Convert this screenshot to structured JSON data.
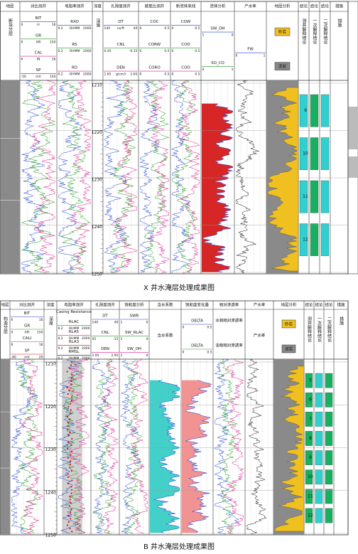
{
  "panels": [
    {
      "caption": "X 井水淹层处理成果图",
      "columns": [
        "地层",
        "对比测井",
        "电阻率测井",
        "深度",
        "孔隙度测井",
        "碳氧比测井",
        "新流体来线",
        "流体分析",
        "产水率",
        "地层分析",
        "结论",
        "结论",
        "结论",
        "措施"
      ],
      "headers": [
        [
          {
            "name": "断块分层"
          }
        ],
        [
          {
            "name": "BIT",
            "left": "0",
            "unit": "H",
            "right": "16"
          },
          {
            "name": "GR",
            "left": "0",
            "unit": "API",
            "right": "150"
          },
          {
            "name": "CAL",
            "left": "6",
            "unit": "IN",
            "right": "16"
          },
          {
            "name": "SP",
            "left": "-50",
            "unit": "mV",
            "right": "150"
          }
        ],
        [
          {
            "name": "RXO",
            "left": "0.2",
            "unit": "OHMM",
            "right": "2000"
          },
          {
            "name": "RS",
            "left": "0.2",
            "unit": "OHMM",
            "right": "2000"
          },
          {
            "name": "RD",
            "left": "0.2",
            "unit": "OHMM",
            "right": "2000"
          }
        ],
        [
          {
            "name": "深度"
          }
        ],
        [
          {
            "name": "DT",
            "left": "140",
            "unit": "us/ft",
            "right": "40"
          },
          {
            "name": "CNL",
            "left": "0.45",
            "unit": "",
            "right": "-0.15"
          },
          {
            "name": "DEN",
            "left": "1.65",
            "unit": "g/cm3",
            "right": "2.65"
          }
        ],
        [
          {
            "name": "COC",
            "left": "0",
            "unit": "",
            "right": "0.5"
          },
          {
            "name": "CORW",
            "left": "0",
            "unit": "",
            "right": "0.5"
          },
          {
            "name": "CORO",
            "left": "0",
            "unit": "",
            "right": "0.5"
          }
        ],
        [
          {
            "name": "COW",
            "left": "0",
            "unit": "",
            "right": "0.5"
          },
          {
            "name": "COD",
            "left": "0",
            "unit": "",
            "right": "0.5"
          },
          {
            "name": "COO",
            "left": "0",
            "unit": "",
            "right": "0.5"
          }
        ],
        [
          {
            "name": "SW_OH",
            "left": "1",
            "unit": "",
            "right": "0"
          },
          {
            "name": "SO_CO",
            "left": "0",
            "unit": "",
            "right": "1"
          }
        ],
        [
          {
            "name": "FW",
            "left": "0",
            "unit": "",
            "right": "1"
          }
        ],
        [
          {
            "name": "砂岩"
          },
          {
            "name": "泥岩"
          }
        ],
        [
          {
            "name": "测井解释结论"
          }
        ],
        [
          {
            "name": "一次解释结论"
          }
        ],
        [
          {
            "name": "二次解释结论"
          }
        ],
        [
          {
            "name": "措施"
          }
        ]
      ],
      "depth_ticks": [
        1210,
        1220,
        1230,
        1240,
        1250
      ],
      "layers": [
        "9",
        "10",
        "11",
        "12"
      ]
    },
    {
      "caption": "B 井水淹层处理成果图",
      "columns": [
        "地层",
        "对比测井",
        "深度",
        "电阻率测井",
        "孔隙度测井",
        "饱和度分析",
        "含水系数",
        "饱和度变化量",
        "相对渗透率",
        "产水率",
        "地层分析",
        "结论",
        "结论",
        "结论",
        "措施"
      ],
      "headers": [
        [
          {
            "name": "构造分层"
          }
        ],
        [
          {
            "name": "BIT",
            "left": "6",
            "unit": "",
            "right": "16"
          },
          {
            "name": "GR",
            "left": "0",
            "unit": "API",
            "right": "150"
          },
          {
            "name": "CALI",
            "left": "6",
            "unit": "",
            "right": "16"
          },
          {
            "name": "SP",
            "left": "-80",
            "unit": "mV",
            "right": "20"
          }
        ],
        [
          {
            "name": "深度"
          }
        ],
        [
          {
            "name": "Casing Resistance"
          },
          {
            "name": "RLAC",
            "left": "0.2",
            "unit": "OHMM",
            "right": "2000"
          },
          {
            "name": "RLA5",
            "left": "0.2",
            "unit": "OHMM",
            "right": "2000"
          },
          {
            "name": "RLA3",
            "left": "0.2",
            "unit": "OHMM",
            "right": "2000"
          },
          {
            "name": "RMSL",
            "left": "0.2",
            "unit": "OHMM",
            "right": "2000"
          }
        ],
        [
          {
            "name": "DT",
            "left": "140",
            "unit": "",
            "right": "40"
          },
          {
            "name": "CNL",
            "left": "45",
            "unit": "",
            "right": "-15"
          },
          {
            "name": "DEN",
            "left": "1.95",
            "unit": "",
            "right": "2.95"
          }
        ],
        [
          {
            "name": "SWR",
            "left": "1",
            "unit": "",
            "right": "0"
          },
          {
            "name": "SW_RLAC",
            "left": "1",
            "unit": "",
            "right": "0"
          },
          {
            "name": "SW_OH",
            "left": "1",
            "unit": "",
            "right": "0"
          }
        ],
        [
          {
            "name": "含水系数"
          }
        ],
        [
          {
            "name": "DELTA",
            "left": "0",
            "unit": "",
            "right": "0.5"
          },
          {
            "name": "DELTA",
            "left": "0",
            "unit": "",
            "right": "0.5"
          }
        ],
        [
          {
            "name": "水相相对渗透率"
          },
          {
            "name": "油相相对渗透率"
          }
        ],
        [
          {
            "name": "产水率"
          }
        ],
        [
          {
            "name": "砂岩"
          },
          {
            "name": "泥岩"
          }
        ],
        [
          {
            "name": "测井解释结论"
          }
        ],
        [
          {
            "name": "一次解释结论"
          }
        ],
        [
          {
            "name": "二次解释结论"
          }
        ],
        [
          {
            "name": "措施"
          }
        ]
      ],
      "depth_ticks": [
        1210,
        1220,
        1230,
        1240,
        1250
      ],
      "layers": [
        "5",
        "6",
        "7",
        "8",
        "9",
        "10",
        "11",
        "12"
      ]
    }
  ]
}
